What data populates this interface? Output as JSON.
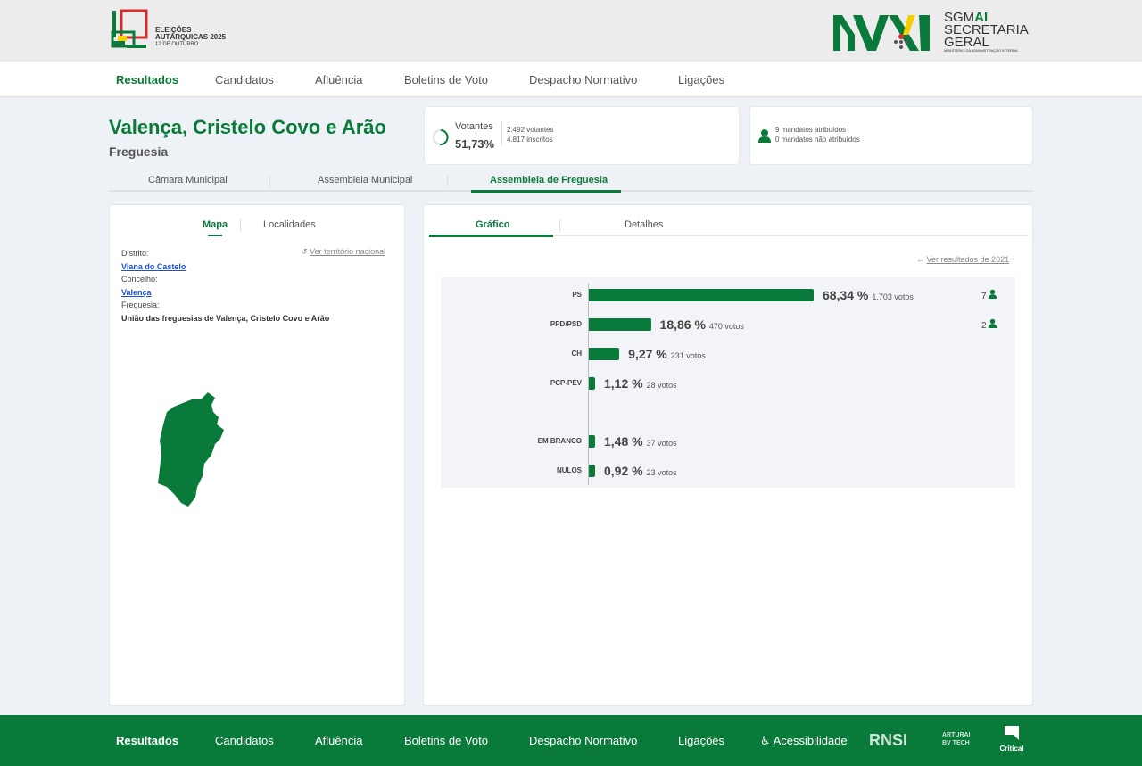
{
  "logo": {
    "line1": "ELEIÇÕES",
    "line2": "AUTÁRQUICAS 2025",
    "date": "12 DE OUTUBRO"
  },
  "sgmai": {
    "line1a": "SGM",
    "line1b": "AI",
    "line2": "SECRETARIA",
    "line3": "GERAL",
    "ministry": "MINISTÉRIO DA ADMINISTRAÇÃO INTERNA"
  },
  "nav": [
    "Resultados",
    "Candidatos",
    "Afluência",
    "Boletins de Voto",
    "Despacho Normativo",
    "Ligações"
  ],
  "header": {
    "title": "Valença, Cristelo Covo e Arão",
    "subtitle": "Freguesia"
  },
  "turnout": {
    "label": "Votantes",
    "percent": "51,73%",
    "voters": "2.492 votantes",
    "registered": "4.817 inscritos"
  },
  "mandates": {
    "assigned": "9 mandatos atribuídos",
    "unassigned": "0 mandatos não atribuídos"
  },
  "organ_tabs": [
    "Câmara Municipal",
    "Assembleia Municipal",
    "Assembleia de Freguesia"
  ],
  "left_tabs": [
    "Mapa",
    "Localidades"
  ],
  "location": {
    "national_link": "Ver território nacional",
    "district_label": "Distrito:",
    "district": "Viana do Castelo",
    "municipality_label": "Concelho:",
    "municipality": "Valença",
    "parish_label": "Freguesia:",
    "parish": "União das freguesias de Valença, Cristelo Covo e Arão"
  },
  "right_tabs": [
    "Gráfico",
    "Detalhes"
  ],
  "prev_link": "Ver resultados de 2021",
  "chart_data": {
    "type": "bar",
    "categories": [
      "PS",
      "PPD/PSD",
      "CH",
      "PCP-PEV",
      "EM BRANCO",
      "NULOS"
    ],
    "values": [
      68.34,
      18.86,
      9.27,
      1.12,
      1.48,
      0.92
    ],
    "value_labels": [
      "68,34 %",
      "18,86 %",
      "9,27 %",
      "1,12 %",
      "1,48 %",
      "0,92 %"
    ],
    "votes": [
      "1.703 votos",
      "470 votos",
      "231 votos",
      "28 votos",
      "37 votos",
      "23 votos"
    ],
    "seats": [
      "7",
      "2",
      "",
      "",
      "",
      ""
    ]
  },
  "footer": {
    "nav": [
      "Resultados",
      "Candidatos",
      "Afluência",
      "Boletins de Voto",
      "Despacho Normativo",
      "Ligações"
    ],
    "accessibility": "Acessibilidade",
    "partners": [
      "RNSI",
      "ARTURAI",
      "BV TECH",
      "Critical"
    ]
  },
  "colors": {
    "brand": "#0a7a3a",
    "link": "#1a4fd8"
  }
}
